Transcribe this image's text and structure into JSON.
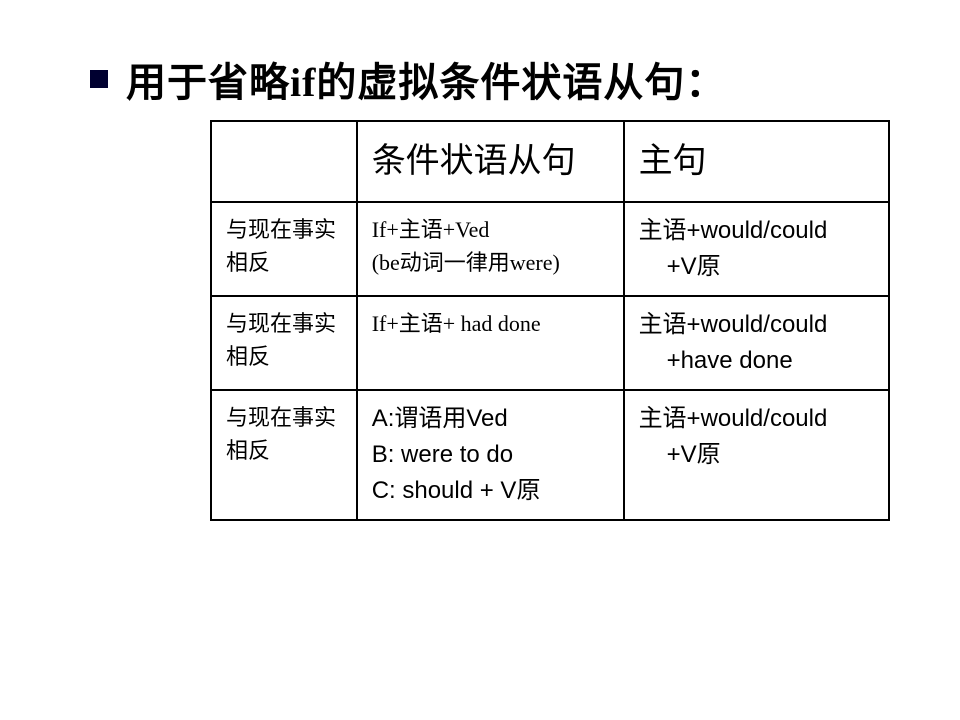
{
  "title": "用于省略if的虚拟条件状语从句：",
  "table": {
    "header": {
      "col1": "",
      "col2": "条件状语从句",
      "col3": "主句"
    },
    "rows": [
      {
        "col1": "与现在事实相反",
        "col2_line1": "If+主语+Ved",
        "col2_line2": "(be动词一律用were)",
        "col3_line1": "主语+would/could",
        "col3_line2": "+V原"
      },
      {
        "col1": "与现在事实相反",
        "col2_line1": "If+主语+ had done",
        "col3_line1": "主语+would/could",
        "col3_line2": "+have done"
      },
      {
        "col1": "与现在事实相反",
        "col2_line1": "A:谓语用Ved",
        "col2_line2": "B: were to do",
        "col2_line3": "C: should + V原",
        "col3_line1": "主语+would/could",
        "col3_line2": "+V原"
      }
    ]
  },
  "colors": {
    "bullet": "#000030",
    "text": "#000000",
    "border": "#000000",
    "background": "#ffffff"
  }
}
